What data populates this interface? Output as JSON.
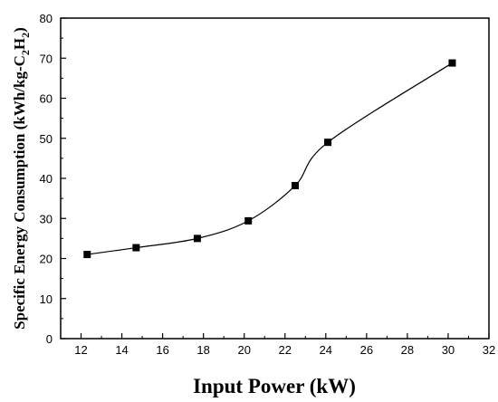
{
  "chart_data": {
    "type": "scatter",
    "title": "",
    "xlabel": "Input Power (kW)",
    "ylabel": {
      "prefix": "Specific Energy Consumption (kWh/kg-C",
      "sub1": "2",
      "mid": "H",
      "sub2": "2",
      "suffix": ")"
    },
    "xlim": [
      11,
      32
    ],
    "ylim": [
      0,
      80
    ],
    "xticks": [
      12,
      14,
      16,
      18,
      20,
      22,
      24,
      26,
      28,
      30,
      32
    ],
    "yticks": [
      0,
      10,
      20,
      30,
      40,
      50,
      60,
      70,
      80
    ],
    "grid": false,
    "fit_line": true,
    "series": [
      {
        "marker": "square",
        "color": "#000000",
        "x": [
          12.3,
          14.7,
          17.7,
          20.2,
          22.5,
          24.1,
          30.2
        ],
        "y": [
          21.0,
          22.7,
          25.0,
          29.4,
          38.2,
          49.0,
          68.8
        ]
      }
    ]
  }
}
